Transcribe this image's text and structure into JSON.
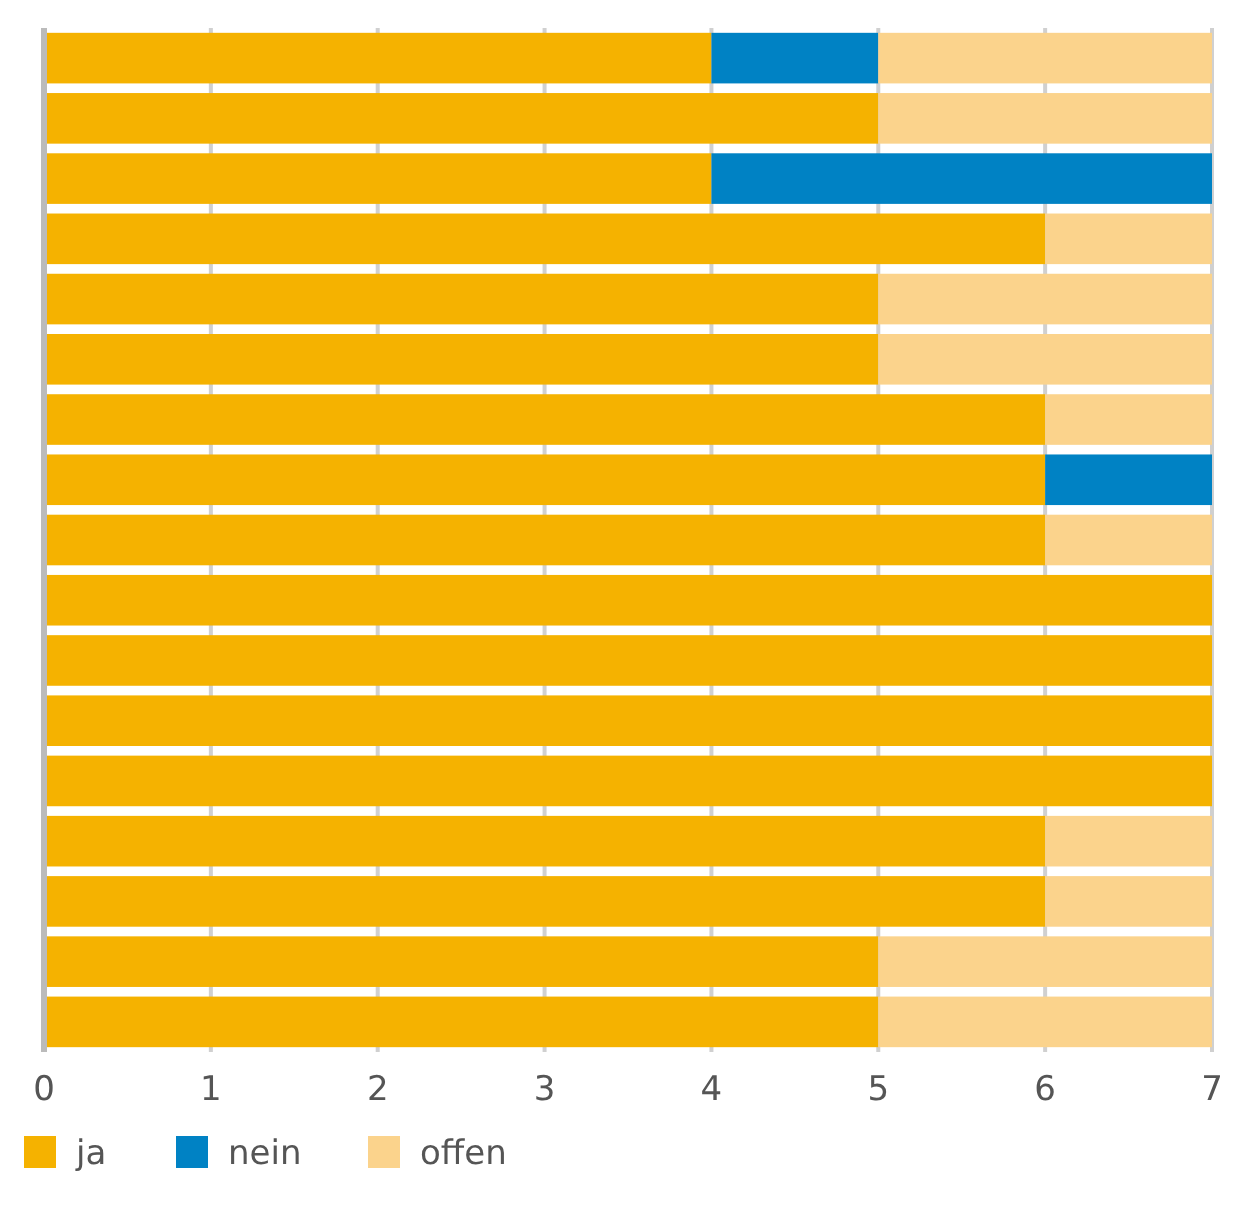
{
  "chart_data": {
    "type": "bar",
    "orientation": "horizontal",
    "stacked": true,
    "categories": [
      null,
      null,
      null,
      null,
      null,
      null,
      null,
      null,
      null,
      null,
      null,
      null,
      null,
      null,
      null,
      null,
      null
    ],
    "series": [
      {
        "name": "ja",
        "color": "#f5b200",
        "values": [
          4,
          5,
          4,
          6,
          5,
          5,
          6,
          6,
          6,
          7,
          7,
          7,
          7,
          6,
          6,
          5,
          5
        ]
      },
      {
        "name": "nein",
        "color": "#0082c4",
        "values": [
          1,
          0,
          3,
          0,
          0,
          0,
          0,
          1,
          0,
          0,
          0,
          0,
          0,
          0,
          0,
          0,
          0
        ]
      },
      {
        "name": "offen",
        "color": "#fbd38c",
        "values": [
          2,
          2,
          0,
          1,
          2,
          2,
          1,
          0,
          1,
          0,
          0,
          0,
          0,
          1,
          1,
          2,
          2
        ]
      }
    ],
    "xlim": [
      0,
      7
    ],
    "xticks": [
      0,
      1,
      2,
      3,
      4,
      5,
      6,
      7
    ],
    "grid": "x",
    "legend": "bottom left"
  }
}
